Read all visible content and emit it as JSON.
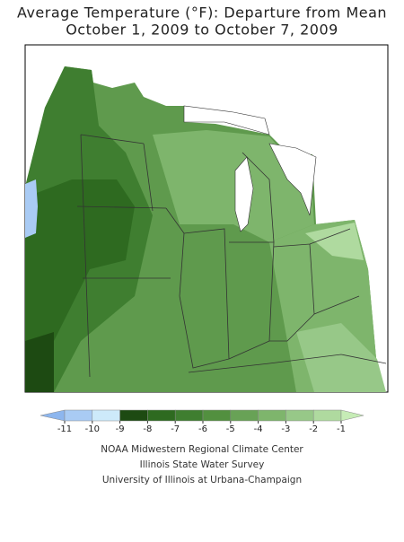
{
  "title": [
    "Average Temperature (°F): Departure from Mean",
    "October 1, 2009 to October 7, 2009"
  ],
  "legend": {
    "ticks": [
      -11,
      -10,
      -9,
      -8,
      -7,
      -6,
      -5,
      -4,
      -3,
      -2,
      -1
    ],
    "colors": [
      "#8db6ee",
      "#a9cbf4",
      "#cdeafa",
      "#1d4a12",
      "#2e6a20",
      "#3f7e30",
      "#52903f",
      "#68a256",
      "#7eb56c",
      "#97c888",
      "#afda9f",
      "#c6ecb6"
    ]
  },
  "credits": [
    "NOAA Midwestern Regional Climate Center",
    "Illinois State Water Survey",
    "University of Illinois at Urbana-Champaign"
  ]
}
